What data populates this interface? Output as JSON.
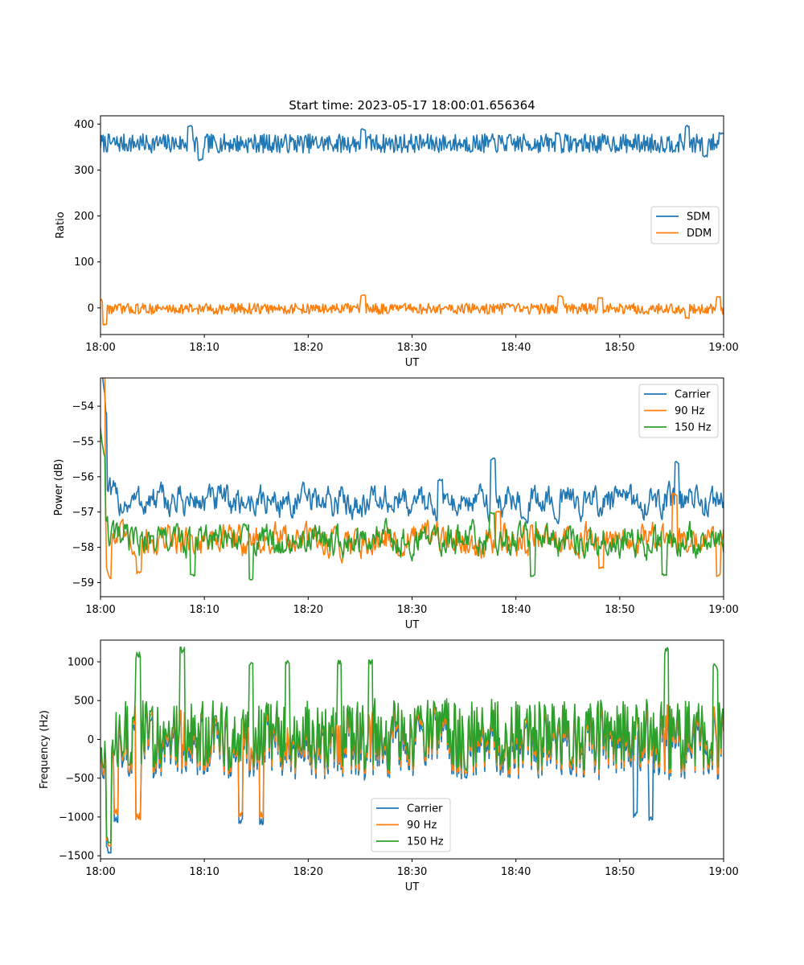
{
  "figure": {
    "title": "Start time: 2023-05-17 18:00:01.656364"
  },
  "chart_data": [
    {
      "type": "line",
      "id": "ratio",
      "xlabel": "UT",
      "ylabel": "Ratio",
      "xlim": [
        "18:00",
        "19:00"
      ],
      "xticks": [
        "18:00",
        "18:10",
        "18:20",
        "18:30",
        "18:40",
        "18:50",
        "19:00"
      ],
      "ylim": [
        -58,
        418
      ],
      "yticks": [
        0,
        100,
        200,
        300,
        400
      ],
      "legend_position": "center-right",
      "series": [
        {
          "name": "SDM",
          "color": "#1f77b4",
          "mean": 358,
          "amp": 16,
          "peaks": [
            [
              8.6,
              395
            ],
            [
              9.6,
              322
            ],
            [
              25.3,
              388
            ],
            [
              44.0,
              380
            ],
            [
              56.5,
              395
            ],
            [
              58.2,
              330
            ],
            [
              59.8,
              380
            ]
          ]
        },
        {
          "name": "DDM",
          "color": "#ff7f0e",
          "mean": -2,
          "amp": 9,
          "peaks": [
            [
              0.4,
              -36
            ],
            [
              0.0,
              18
            ],
            [
              25.3,
              27
            ],
            [
              44.3,
              25
            ],
            [
              48.1,
              22
            ],
            [
              56.5,
              -22
            ],
            [
              59.5,
              24
            ]
          ]
        }
      ]
    },
    {
      "type": "line",
      "id": "power",
      "xlabel": "UT",
      "ylabel": "Power (dB)",
      "xlim": [
        "18:00",
        "19:00"
      ],
      "xticks": [
        "18:00",
        "18:10",
        "18:20",
        "18:30",
        "18:40",
        "18:50",
        "19:00"
      ],
      "ylim": [
        -59.4,
        -53.2
      ],
      "yticks": [
        -59,
        -58,
        -57,
        -56,
        -55,
        -54
      ],
      "legend_position": "upper-right",
      "series": [
        {
          "name": "Carrier",
          "color": "#1f77b4",
          "mean": -56.7,
          "amp": 0.35,
          "peaks": [
            [
              0.2,
              -53.4
            ],
            [
              0.4,
              -54.6
            ],
            [
              37.8,
              -55.5
            ],
            [
              55.5,
              -55.6
            ],
            [
              32.7,
              -56.1
            ]
          ]
        },
        {
          "name": "90 Hz",
          "color": "#ff7f0e",
          "mean": -57.8,
          "amp": 0.35,
          "peaks": [
            [
              0.2,
              -53.9
            ],
            [
              0.8,
              -59.0
            ],
            [
              3.7,
              -58.7
            ],
            [
              59.5,
              -58.8
            ],
            [
              38.3,
              -57.0
            ],
            [
              55.3,
              -56.5
            ],
            [
              48.2,
              -58.6
            ]
          ]
        },
        {
          "name": "150 Hz",
          "color": "#2ca02c",
          "mean": -57.8,
          "amp": 0.35,
          "peaks": [
            [
              0.2,
              -55.8
            ],
            [
              14.5,
              -58.9
            ],
            [
              8.9,
              -58.8
            ],
            [
              41.6,
              -58.8
            ],
            [
              54.3,
              -58.8
            ],
            [
              37.7,
              -57.0
            ]
          ]
        }
      ]
    },
    {
      "type": "line",
      "id": "frequency",
      "xlabel": "UT",
      "ylabel": "Frequency (Hz)",
      "xlim": [
        "18:00",
        "19:00"
      ],
      "xticks": [
        "18:00",
        "18:10",
        "18:20",
        "18:30",
        "18:40",
        "18:50",
        "19:00"
      ],
      "ylim": [
        -1540,
        1280
      ],
      "yticks": [
        -1500,
        -1000,
        -500,
        0,
        500,
        1000
      ],
      "legend_position": "lower-center",
      "series": [
        {
          "name": "Carrier",
          "color": "#1f77b4",
          "mean": -60,
          "amp": 320,
          "peaks": [
            [
              0.8,
              -1420
            ],
            [
              1.5,
              -1030
            ],
            [
              3.6,
              -1000
            ],
            [
              13.5,
              -1050
            ],
            [
              15.5,
              -1060
            ],
            [
              51.5,
              -980
            ],
            [
              53.0,
              -1020
            ]
          ]
        },
        {
          "name": "90 Hz",
          "color": "#ff7f0e",
          "mean": 0,
          "amp": 320,
          "peaks": [
            [
              0.8,
              -1330
            ],
            [
              1.5,
              -930
            ],
            [
              3.6,
              -1000
            ],
            [
              13.5,
              -960
            ],
            [
              15.5,
              -970
            ]
          ]
        },
        {
          "name": "150 Hz",
          "color": "#2ca02c",
          "mean": 60,
          "amp": 320,
          "peaks": [
            [
              0.8,
              -1290
            ],
            [
              3.6,
              1080
            ],
            [
              7.9,
              1150
            ],
            [
              14.5,
              1000
            ],
            [
              18.0,
              1000
            ],
            [
              23.0,
              1000
            ],
            [
              26.0,
              990
            ],
            [
              54.5,
              1140
            ],
            [
              59.2,
              930
            ]
          ]
        }
      ]
    }
  ]
}
